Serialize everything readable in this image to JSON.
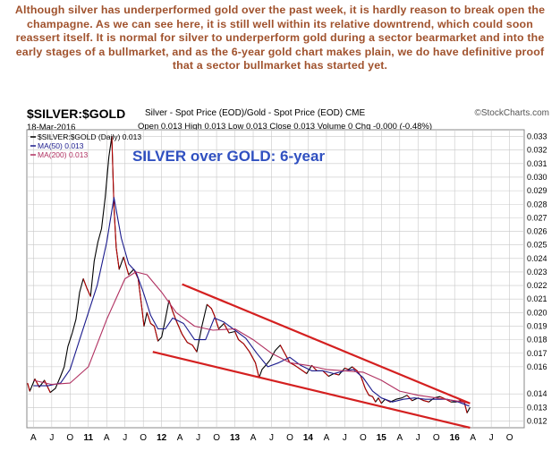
{
  "commentary": "Although silver has underperformed gold over the past week, it is hardly reason to break open the champagne. As we can see here, it is still well within its relative downtrend, which could soon reassert itself. It is normal for silver to underperform gold during a sector bearmarket and into the early stages of a bullmarket, and as the 6-year gold chart makes plain, we do have definitive proof that a sector bullmarket has started yet.",
  "header": {
    "symbol": "$SILVER:$GOLD",
    "description": "Silver - Spot Price (EOD)/Gold - Spot Price (EOD)  CME",
    "brand": "©StockCharts.com",
    "date": "18-Mar-2016",
    "ohlc": "Open 0.013  High 0.013  Low 0.013  Close 0.013  Volume 0  Chg -0.000 (-0.48%)"
  },
  "legend": [
    {
      "label": "$SILVER:$GOLD (Daily) 0.013",
      "color": "#000000"
    },
    {
      "label": "MA(50) 0.013",
      "color": "#1a1a8c"
    },
    {
      "label": "MA(200) 0.013",
      "color": "#b03060"
    }
  ],
  "colors": {
    "price": "#000000",
    "price_down": "#c00000",
    "ma50": "#1a1a8c",
    "ma200": "#b03060",
    "channel": "#d42020",
    "annotation": "#3050c0",
    "grid": "#c8c8c8"
  },
  "chart_data": {
    "type": "line",
    "title": "SILVER over GOLD: 6-year",
    "xlabel": "",
    "ylabel": "",
    "ylim": [
      0.0115,
      0.0335
    ],
    "y_ticks": [
      0.012,
      0.013,
      0.014,
      0.016,
      0.017,
      0.018,
      0.019,
      0.02,
      0.021,
      0.022,
      0.023,
      0.024,
      0.025,
      0.026,
      0.027,
      0.028,
      0.029,
      0.03,
      0.031,
      0.032,
      0.033
    ],
    "y_tick_labels": [
      "0.012",
      "0.013",
      "0.014",
      "0.016",
      "0.017",
      "0.018",
      "0.019",
      "0.020",
      "0.021",
      "0.022",
      "0.023",
      "0.024",
      "0.025",
      "0.026",
      "0.027",
      "0.028",
      "0.029",
      "0.030",
      "0.031",
      "0.032",
      "0.033"
    ],
    "x_ticks": [
      "A",
      "J",
      "O",
      "11",
      "A",
      "J",
      "O",
      "12",
      "A",
      "J",
      "O",
      "13",
      "A",
      "J",
      "O",
      "14",
      "A",
      "J",
      "O",
      "15",
      "A",
      "J",
      "O",
      "16",
      "A",
      "J",
      "O"
    ],
    "x_tick_times": [
      2010.25,
      2010.5,
      2010.75,
      2011,
      2011.25,
      2011.5,
      2011.75,
      2012,
      2012.25,
      2012.5,
      2012.75,
      2013,
      2013.25,
      2013.5,
      2013.75,
      2014,
      2014.25,
      2014.5,
      2014.75,
      2015,
      2015.25,
      2015.5,
      2015.75,
      2016,
      2016.25,
      2016.5,
      2016.75
    ],
    "x_bold_ticks": [
      "11",
      "12",
      "13",
      "14",
      "15",
      "16"
    ],
    "xlim": [
      2010.16,
      2016.95
    ],
    "series": [
      {
        "name": "$SILVER:$GOLD (Daily)",
        "x": [
          2010.17,
          2010.2,
          2010.27,
          2010.33,
          2010.4,
          2010.48,
          2010.55,
          2010.62,
          2010.67,
          2010.72,
          2010.78,
          2010.83,
          2010.88,
          2010.93,
          2010.98,
          2011.03,
          2011.08,
          2011.13,
          2011.18,
          2011.23,
          2011.28,
          2011.32,
          2011.35,
          2011.38,
          2011.42,
          2011.48,
          2011.55,
          2011.62,
          2011.68,
          2011.72,
          2011.76,
          2011.8,
          2011.85,
          2011.9,
          2011.95,
          2012.0,
          2012.05,
          2012.1,
          2012.15,
          2012.2,
          2012.28,
          2012.35,
          2012.42,
          2012.48,
          2012.55,
          2012.62,
          2012.68,
          2012.72,
          2012.78,
          2012.85,
          2012.92,
          2013.0,
          2013.05,
          2013.12,
          2013.2,
          2013.28,
          2013.33,
          2013.37,
          2013.42,
          2013.48,
          2013.55,
          2013.62,
          2013.68,
          2013.75,
          2013.82,
          2013.9,
          2013.98,
          2014.05,
          2014.12,
          2014.2,
          2014.28,
          2014.35,
          2014.42,
          2014.5,
          2014.55,
          2014.6,
          2014.67,
          2014.72,
          2014.78,
          2014.83,
          2014.88,
          2014.92,
          2014.96,
          2015.0,
          2015.05,
          2015.12,
          2015.2,
          2015.28,
          2015.35,
          2015.42,
          2015.5,
          2015.58,
          2015.65,
          2015.72,
          2015.8,
          2015.88,
          2015.95,
          2016.02,
          2016.08,
          2016.13,
          2016.17,
          2016.21
        ],
        "values": [
          0.0148,
          0.0142,
          0.0151,
          0.0145,
          0.015,
          0.0141,
          0.0144,
          0.0153,
          0.016,
          0.0175,
          0.0185,
          0.0195,
          0.0215,
          0.0225,
          0.0218,
          0.0212,
          0.0238,
          0.0252,
          0.0262,
          0.0285,
          0.0315,
          0.033,
          0.0278,
          0.0248,
          0.0232,
          0.0241,
          0.0228,
          0.0232,
          0.0225,
          0.0208,
          0.019,
          0.02,
          0.0192,
          0.019,
          0.0179,
          0.0182,
          0.0195,
          0.0209,
          0.0201,
          0.0194,
          0.0184,
          0.0178,
          0.0176,
          0.0171,
          0.019,
          0.0206,
          0.0203,
          0.0198,
          0.0188,
          0.0192,
          0.0185,
          0.0186,
          0.018,
          0.0177,
          0.0171,
          0.0163,
          0.0152,
          0.0158,
          0.0161,
          0.0165,
          0.0172,
          0.0176,
          0.017,
          0.0163,
          0.0161,
          0.0158,
          0.0155,
          0.0161,
          0.0157,
          0.0157,
          0.0153,
          0.0155,
          0.0154,
          0.0159,
          0.0158,
          0.016,
          0.0157,
          0.0153,
          0.0144,
          0.0139,
          0.0138,
          0.0134,
          0.0137,
          0.0133,
          0.0136,
          0.0134,
          0.0136,
          0.0137,
          0.0139,
          0.0135,
          0.0137,
          0.0135,
          0.0134,
          0.0137,
          0.0138,
          0.0136,
          0.0134,
          0.0134,
          0.0135,
          0.0134,
          0.0126,
          0.013
        ]
      },
      {
        "name": "MA(50)",
        "x": [
          2010.25,
          2010.45,
          2010.62,
          2010.75,
          2010.88,
          2011.0,
          2011.12,
          2011.25,
          2011.35,
          2011.45,
          2011.55,
          2011.65,
          2011.75,
          2011.85,
          2011.95,
          2012.05,
          2012.15,
          2012.3,
          2012.45,
          2012.6,
          2012.72,
          2012.85,
          2013.0,
          2013.15,
          2013.3,
          2013.45,
          2013.6,
          2013.75,
          2013.9,
          2014.05,
          2014.2,
          2014.35,
          2014.5,
          2014.62,
          2014.75,
          2014.88,
          2015.0,
          2015.15,
          2015.3,
          2015.45,
          2015.6,
          2015.75,
          2015.9,
          2016.05,
          2016.2
        ],
        "values": [
          0.0146,
          0.0146,
          0.0148,
          0.0158,
          0.018,
          0.02,
          0.022,
          0.0252,
          0.0285,
          0.0255,
          0.0236,
          0.023,
          0.0215,
          0.0198,
          0.0188,
          0.0188,
          0.0196,
          0.0192,
          0.018,
          0.018,
          0.0196,
          0.0193,
          0.0187,
          0.0181,
          0.017,
          0.016,
          0.0163,
          0.0167,
          0.0161,
          0.0157,
          0.0157,
          0.0155,
          0.0157,
          0.0158,
          0.0152,
          0.0142,
          0.0137,
          0.0134,
          0.0136,
          0.0137,
          0.0136,
          0.0136,
          0.0136,
          0.0134,
          0.0131
        ]
      },
      {
        "name": "MA(200)",
        "x": [
          2010.25,
          2010.5,
          2010.75,
          2011.0,
          2011.25,
          2011.5,
          2011.65,
          2011.8,
          2012.0,
          2012.2,
          2012.45,
          2012.7,
          2013.0,
          2013.25,
          2013.5,
          2013.75,
          2014.0,
          2014.25,
          2014.5,
          2014.75,
          2015.0,
          2015.25,
          2015.5,
          2015.75,
          2016.0,
          2016.21
        ],
        "values": [
          0.015,
          0.0147,
          0.0148,
          0.016,
          0.0195,
          0.0225,
          0.023,
          0.0228,
          0.0215,
          0.02,
          0.019,
          0.0187,
          0.0188,
          0.018,
          0.017,
          0.0163,
          0.0161,
          0.0158,
          0.0157,
          0.0156,
          0.015,
          0.0142,
          0.0139,
          0.0137,
          0.0135,
          0.0133
        ]
      },
      {
        "name": "channel-upper",
        "x": [
          2012.28,
          2016.21
        ],
        "values": [
          0.0221,
          0.0133
        ]
      },
      {
        "name": "channel-lower",
        "x": [
          2011.88,
          2016.21
        ],
        "values": [
          0.0171,
          0.0115
        ]
      }
    ]
  }
}
